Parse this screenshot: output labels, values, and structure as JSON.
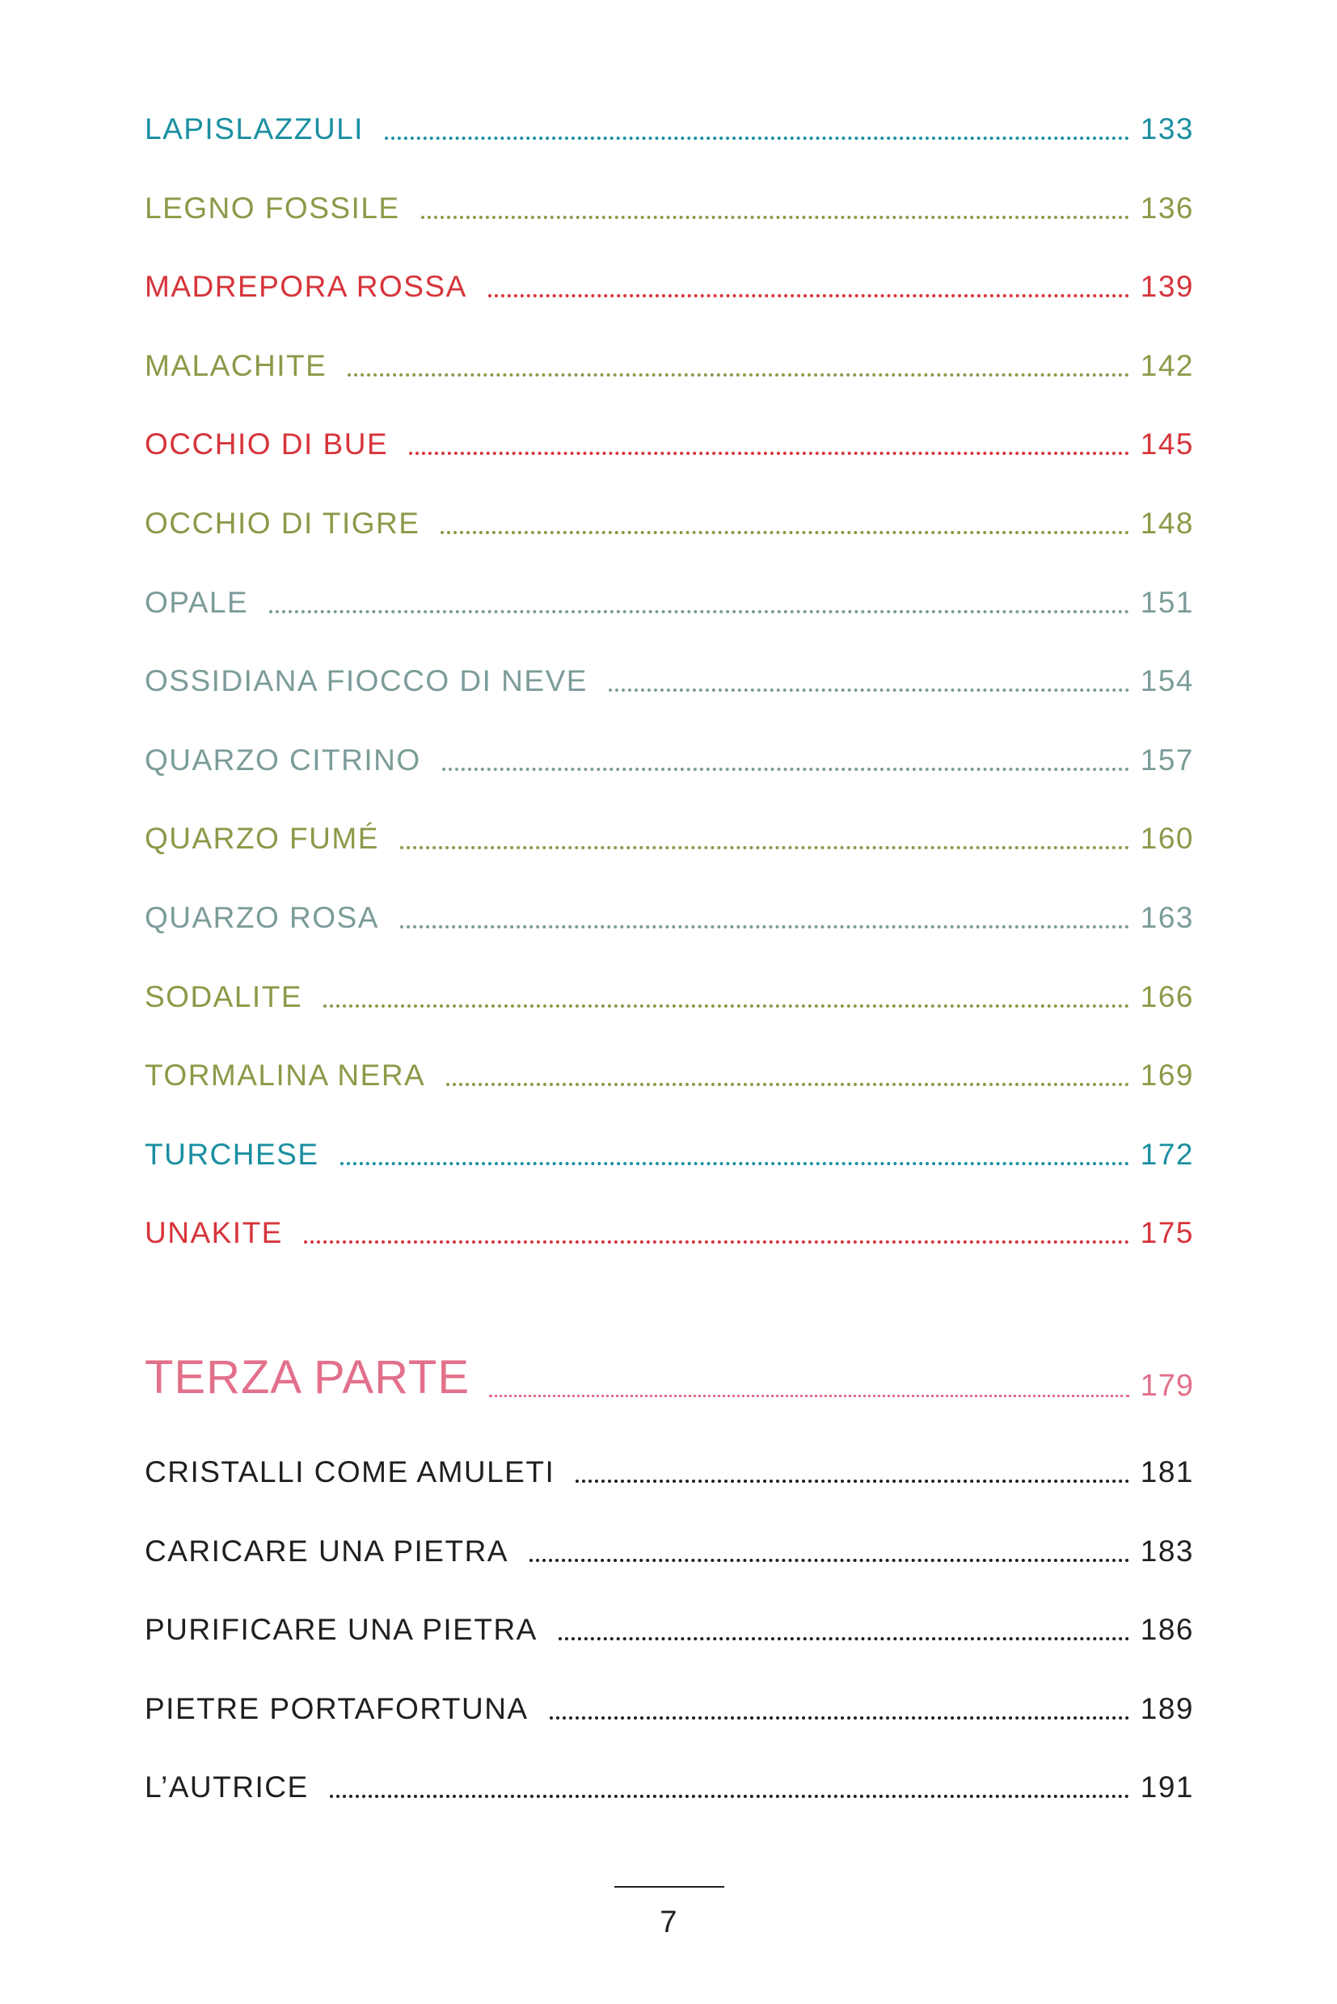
{
  "colors": {
    "teal": "#1a8fa1",
    "olive": "#8a9a48",
    "red": "#d6343a",
    "grey": "#7b9c99",
    "pink": "#e2708b",
    "black": "#1f1f1f"
  },
  "entries": [
    {
      "title": "LAPISLAZZULI",
      "page": "133",
      "color": "teal"
    },
    {
      "title": "LEGNO FOSSILE",
      "page": "136",
      "color": "olive"
    },
    {
      "title": "MADREPORA ROSSA",
      "page": "139",
      "color": "red"
    },
    {
      "title": "MALACHITE",
      "page": "142",
      "color": "olive"
    },
    {
      "title": "OCCHIO DI BUE",
      "page": "145",
      "color": "red"
    },
    {
      "title": "OCCHIO DI TIGRE",
      "page": "148",
      "color": "olive"
    },
    {
      "title": "OPALE",
      "page": "151",
      "color": "grey"
    },
    {
      "title": "OSSIDIANA FIOCCO DI NEVE",
      "page": "154",
      "color": "grey"
    },
    {
      "title": "QUARZO CITRINO",
      "page": "157",
      "color": "grey"
    },
    {
      "title": "QUARZO FUMÉ",
      "page": "160",
      "color": "olive"
    },
    {
      "title": "QUARZO ROSA",
      "page": "163",
      "color": "grey"
    },
    {
      "title": "SODALITE",
      "page": "166",
      "color": "olive"
    },
    {
      "title": "TORMALINA NERA",
      "page": "169",
      "color": "olive"
    },
    {
      "title": "TURCHESE",
      "page": "172",
      "color": "teal"
    },
    {
      "title": "UNAKITE",
      "page": "175",
      "color": "red"
    }
  ],
  "section": {
    "title": "TERZA PARTE",
    "page": "179",
    "color": "pink"
  },
  "section_entries": [
    {
      "title": "CRISTALLI COME AMULETI",
      "page": "181",
      "color": "black"
    },
    {
      "title": "CARICARE UNA PIETRA",
      "page": "183",
      "color": "black"
    },
    {
      "title": "PURIFICARE UNA PIETRA",
      "page": "186",
      "color": "black"
    },
    {
      "title": "PIETRE PORTAFORTUNA",
      "page": "189",
      "color": "black"
    },
    {
      "title": "L’AUTRICE",
      "page": "191",
      "color": "black"
    }
  ],
  "page_number": "7"
}
